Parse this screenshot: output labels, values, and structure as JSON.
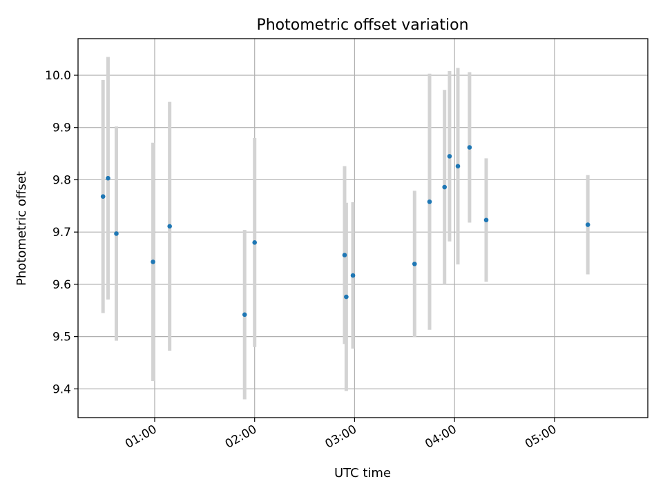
{
  "chart_data": {
    "type": "scatter",
    "title": "Photometric offset variation",
    "xlabel": "UTC time",
    "ylabel": "Photometric offset",
    "x_tick_labels": [
      "01:00",
      "02:00",
      "03:00",
      "04:00",
      "05:00"
    ],
    "x_tick_values": [
      "01:00",
      "02:00",
      "03:00",
      "04:00",
      "05:00"
    ],
    "xlim": [
      "00:14",
      "05:56"
    ],
    "ylim": [
      9.345,
      10.07
    ],
    "y_ticks": [
      "9.4",
      "9.5",
      "9.6",
      "9.7",
      "9.8",
      "9.9",
      "10.0"
    ],
    "grid": true,
    "points": [
      {
        "x": "00:29",
        "y": 9.768,
        "err": 0.223
      },
      {
        "x": "00:32",
        "y": 9.803,
        "err": 0.232
      },
      {
        "x": "00:37",
        "y": 9.697,
        "err": 0.205
      },
      {
        "x": "00:59",
        "y": 9.643,
        "err": 0.228
      },
      {
        "x": "01:09",
        "y": 9.711,
        "err": 0.238
      },
      {
        "x": "01:54",
        "y": 9.542,
        "err": 0.162
      },
      {
        "x": "02:00",
        "y": 9.68,
        "err": 0.2
      },
      {
        "x": "02:54",
        "y": 9.656,
        "err": 0.17
      },
      {
        "x": "02:55",
        "y": 9.576,
        "err": 0.18
      },
      {
        "x": "02:59",
        "y": 9.617,
        "err": 0.14
      },
      {
        "x": "03:36",
        "y": 9.639,
        "err": 0.14
      },
      {
        "x": "03:45",
        "y": 9.758,
        "err": 0.245
      },
      {
        "x": "03:54",
        "y": 9.786,
        "err": 0.186
      },
      {
        "x": "03:57",
        "y": 9.845,
        "err": 0.163
      },
      {
        "x": "04:02",
        "y": 9.826,
        "err": 0.188
      },
      {
        "x": "04:09",
        "y": 9.862,
        "err": 0.144
      },
      {
        "x": "04:19",
        "y": 9.723,
        "err": 0.118
      },
      {
        "x": "05:20",
        "y": 9.714,
        "err": 0.095
      }
    ],
    "colors": {
      "marker": "#1f77b4",
      "errorbar": "#d3d3d3",
      "grid": "#b0b0b0"
    }
  }
}
